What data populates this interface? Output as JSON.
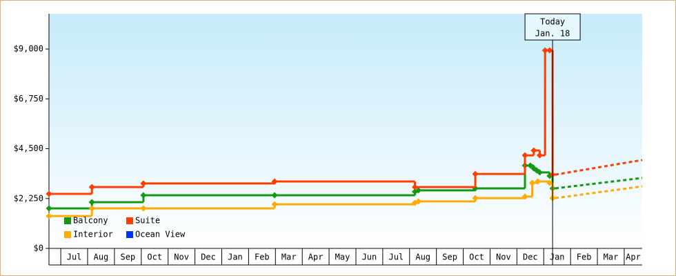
{
  "chart_data": {
    "type": "step",
    "categories": [
      "Jul",
      "Aug",
      "Sep",
      "Oct",
      "Nov",
      "Dec",
      "Jan",
      "Feb",
      "Mar",
      "Apr",
      "May",
      "Jun",
      "Jul",
      "Aug",
      "Sep",
      "Oct",
      "Nov",
      "Dec",
      "Jan",
      "Feb",
      "Mar",
      "Apr"
    ],
    "xlim": [
      -0.44,
      21.67
    ],
    "ylim": [
      0,
      10590
    ],
    "yticks": [
      {
        "value": 0,
        "label": "$0"
      },
      {
        "value": 2250,
        "label": "$2,250"
      },
      {
        "value": 4500,
        "label": "$4,500"
      },
      {
        "value": 6750,
        "label": "$6,750"
      },
      {
        "value": 9000,
        "label": "$9,000"
      }
    ],
    "annotation": {
      "lines": [
        "Today",
        "Jan. 18"
      ],
      "x": 18.33
    },
    "series": [
      {
        "name": "Balcony",
        "color": "#119911",
        "x": [
          -0.44,
          1.16,
          3.08,
          7.97,
          13.2,
          13.33,
          15.45,
          17.3,
          17.5,
          17.63,
          17.74,
          17.85,
          18.22,
          18.33
        ],
        "values": [
          1806,
          2087,
          2400,
          2400,
          2560,
          2620,
          2710,
          3740,
          3740,
          3610,
          3520,
          3430,
          3270,
          2710
        ],
        "forecast": {
          "x": [
            18.43,
            21.67
          ],
          "values": [
            2710,
            3180
          ]
        }
      },
      {
        "name": "Suite",
        "color": "#ff3d00",
        "x": [
          -0.44,
          1.16,
          3.08,
          7.97,
          13.2,
          15.45,
          17.3,
          17.63,
          17.85,
          18.05,
          18.22,
          18.33
        ],
        "values": [
          2460,
          2770,
          2930,
          3020,
          2770,
          3360,
          4200,
          4420,
          4200,
          8940,
          8940,
          3330
        ],
        "forecast": {
          "x": [
            18.43,
            21.67
          ],
          "values": [
            3330,
            3990
          ]
        }
      },
      {
        "name": "Interior",
        "color": "#ffaa00",
        "x": [
          -0.44,
          1.16,
          3.08,
          7.97,
          13.2,
          13.33,
          15.45,
          17.3,
          17.57,
          17.78,
          18.22,
          18.33
        ],
        "values": [
          1460,
          1806,
          1806,
          1990,
          2060,
          2120,
          2270,
          2340,
          2960,
          3020,
          2960,
          2270
        ],
        "forecast": {
          "x": [
            18.43,
            21.67
          ],
          "values": [
            2270,
            2800
          ]
        }
      },
      {
        "name": "Ocean View",
        "color": "#0033ff",
        "x": [],
        "values": []
      }
    ]
  }
}
